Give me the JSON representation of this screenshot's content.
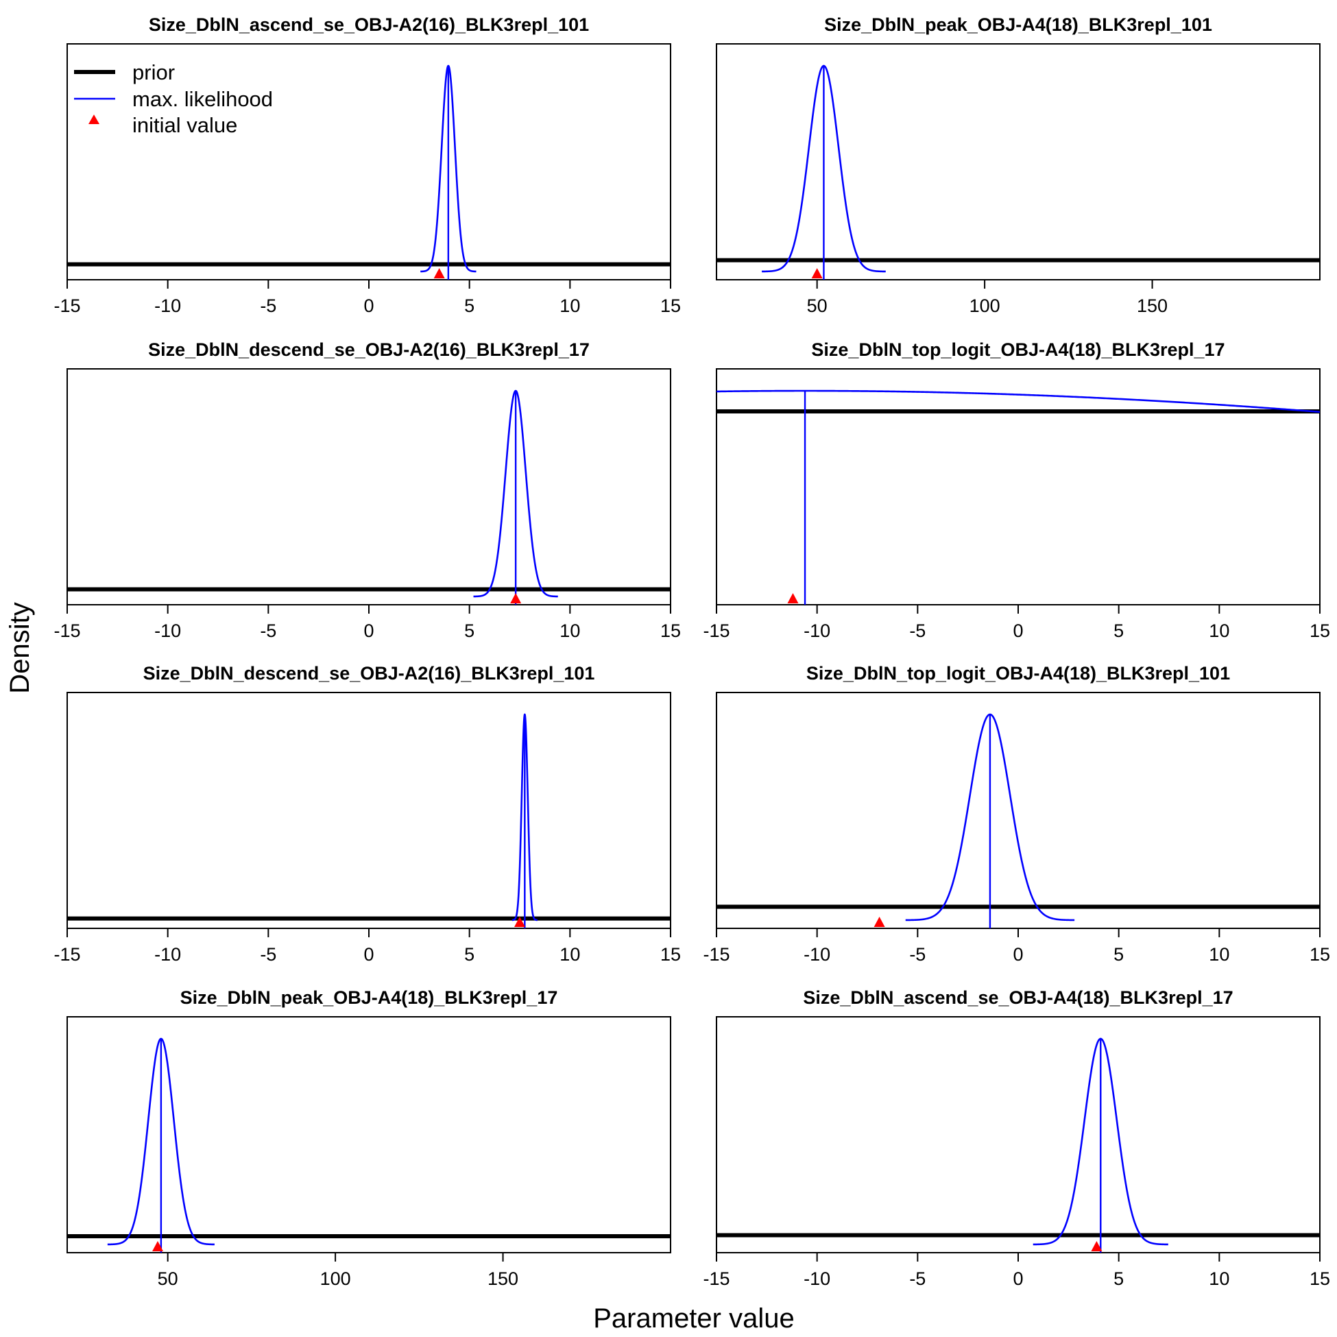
{
  "figure": {
    "ylabel": "Density",
    "xlabel": "Parameter value"
  },
  "legend": {
    "placement": "top-left of first panel",
    "items": [
      {
        "label": "prior",
        "color": "#000000",
        "kind": "thick-line"
      },
      {
        "label": "max. likelihood",
        "color": "#0000ff",
        "kind": "line"
      },
      {
        "label": "initial value",
        "color": "#ff0000",
        "kind": "triangle"
      }
    ]
  },
  "colors": {
    "prior": "#000000",
    "mle": "#0000ff",
    "initial": "#ff0000"
  },
  "chart_data": [
    {
      "type": "line",
      "title": "Size_DblN_ascend_se_OBJ-A2(16)_BLK3repl_101",
      "xlim": [
        -15,
        15
      ],
      "xticks": [
        -15,
        -10,
        -5,
        0,
        5,
        10,
        15
      ],
      "xtick_labels": [
        "-15",
        "-10",
        "-5",
        "0",
        "5",
        "10",
        "15"
      ],
      "prior_level": 0.035,
      "mle": {
        "mean": 3.95,
        "sd": 0.33
      },
      "initial_value": 3.5
    },
    {
      "type": "line",
      "title": "Size_DblN_peak_OBJ-A4(18)_BLK3repl_101",
      "xlim": [
        20,
        200
      ],
      "xticks": [
        50,
        100,
        150
      ],
      "xtick_labels": [
        "50",
        "100",
        "150"
      ],
      "prior_level": 0.055,
      "mle": {
        "mean": 52,
        "sd": 4.4
      },
      "initial_value": 50
    },
    {
      "type": "line",
      "title": "Size_DblN_descend_se_OBJ-A2(16)_BLK3repl_17",
      "xlim": [
        -15,
        15
      ],
      "xticks": [
        -15,
        -10,
        -5,
        0,
        5,
        10,
        15
      ],
      "xtick_labels": [
        "-15",
        "-10",
        "-5",
        "0",
        "5",
        "10",
        "15"
      ],
      "prior_level": 0.035,
      "mle": {
        "mean": 7.3,
        "sd": 0.5
      },
      "initial_value": 7.3
    },
    {
      "type": "line",
      "title": "Size_DblN_top_logit_OBJ-A4(18)_BLK3repl_17",
      "xlim": [
        -15,
        15
      ],
      "xticks": [
        -15,
        -10,
        -5,
        0,
        5,
        10,
        15
      ],
      "xtick_labels": [
        "-15",
        "-10",
        "-5",
        "0",
        "5",
        "10",
        "15"
      ],
      "prior_level": 0.9,
      "mle": {
        "mean": -10.6,
        "sd": 55
      },
      "initial_value": -11.2
    },
    {
      "type": "line",
      "title": "Size_DblN_descend_se_OBJ-A2(16)_BLK3repl_101",
      "xlim": [
        -15,
        15
      ],
      "xticks": [
        -15,
        -10,
        -5,
        0,
        5,
        10,
        15
      ],
      "xtick_labels": [
        "-15",
        "-10",
        "-5",
        "0",
        "5",
        "10",
        "15"
      ],
      "prior_level": 0.008,
      "mle": {
        "mean": 7.75,
        "sd": 0.15
      },
      "initial_value": 7.5
    },
    {
      "type": "line",
      "title": "Size_DblN_top_logit_OBJ-A4(18)_BLK3repl_101",
      "xlim": [
        -15,
        15
      ],
      "xticks": [
        -15,
        -10,
        -5,
        0,
        5,
        10,
        15
      ],
      "xtick_labels": [
        "-15",
        "-10",
        "-5",
        "0",
        "5",
        "10",
        "15"
      ],
      "prior_level": 0.065,
      "mle": {
        "mean": -1.4,
        "sd": 1.0
      },
      "initial_value": -6.9
    },
    {
      "type": "line",
      "title": "Size_DblN_peak_OBJ-A4(18)_BLK3repl_17",
      "xlim": [
        20,
        200
      ],
      "xticks": [
        50,
        100,
        150
      ],
      "xtick_labels": [
        "50",
        "100",
        "150"
      ],
      "prior_level": 0.04,
      "mle": {
        "mean": 48,
        "sd": 3.8
      },
      "initial_value": 47
    },
    {
      "type": "line",
      "title": "Size_DblN_ascend_se_OBJ-A4(18)_BLK3repl_17",
      "xlim": [
        -15,
        15
      ],
      "xticks": [
        -15,
        -10,
        -5,
        0,
        5,
        10,
        15
      ],
      "xtick_labels": [
        "-15",
        "-10",
        "-5",
        "0",
        "5",
        "10",
        "15"
      ],
      "prior_level": 0.045,
      "mle": {
        "mean": 4.1,
        "sd": 0.8
      },
      "initial_value": 3.9
    }
  ]
}
